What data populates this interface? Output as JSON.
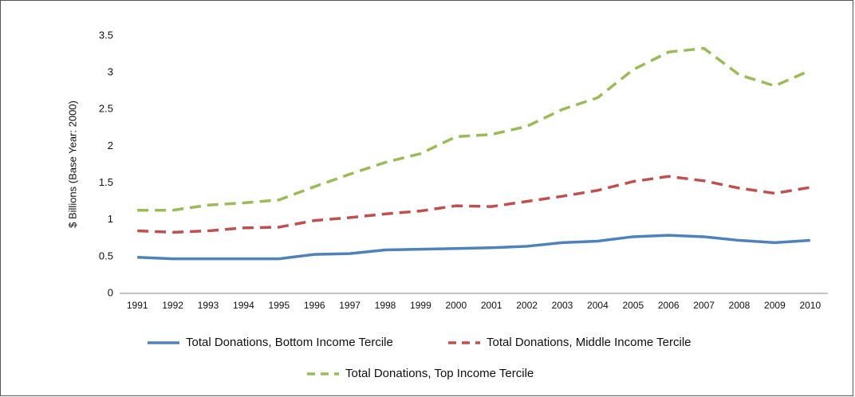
{
  "chart_data": {
    "type": "line",
    "y_label": "$ Billions (Base Year: 2000)",
    "categories": [
      "1991",
      "1992",
      "1993",
      "1994",
      "1995",
      "1996",
      "1997",
      "1998",
      "1999",
      "2000",
      "2001",
      "2002",
      "2003",
      "2004",
      "2005",
      "2006",
      "2007",
      "2008",
      "2009",
      "2010"
    ],
    "series": [
      {
        "name": "Total Donations, Bottom Income Tercile",
        "color": "#4f81bd",
        "dash": "solid",
        "values": [
          0.49,
          0.47,
          0.47,
          0.47,
          0.47,
          0.53,
          0.54,
          0.59,
          0.6,
          0.61,
          0.62,
          0.64,
          0.69,
          0.71,
          0.77,
          0.79,
          0.77,
          0.72,
          0.69,
          0.72
        ]
      },
      {
        "name": "Total Donations, Middle Income Tercile",
        "color": "#c0504d",
        "dash": "dashed",
        "values": [
          0.85,
          0.83,
          0.85,
          0.89,
          0.9,
          0.99,
          1.03,
          1.08,
          1.12,
          1.19,
          1.18,
          1.25,
          1.32,
          1.4,
          1.52,
          1.59,
          1.53,
          1.43,
          1.36,
          1.44
        ]
      },
      {
        "name": "Total Donations, Top Income Tercile",
        "color": "#9bbb59",
        "dash": "dashed",
        "values": [
          1.13,
          1.13,
          1.2,
          1.23,
          1.27,
          1.45,
          1.62,
          1.78,
          1.9,
          2.13,
          2.16,
          2.27,
          2.5,
          2.66,
          3.04,
          3.28,
          3.33,
          2.97,
          2.82,
          3.03
        ]
      }
    ],
    "ylim": [
      0,
      3.5
    ],
    "yticks": [
      0,
      0.5,
      1,
      1.5,
      2,
      2.5,
      3,
      3.5
    ],
    "grid": false
  }
}
